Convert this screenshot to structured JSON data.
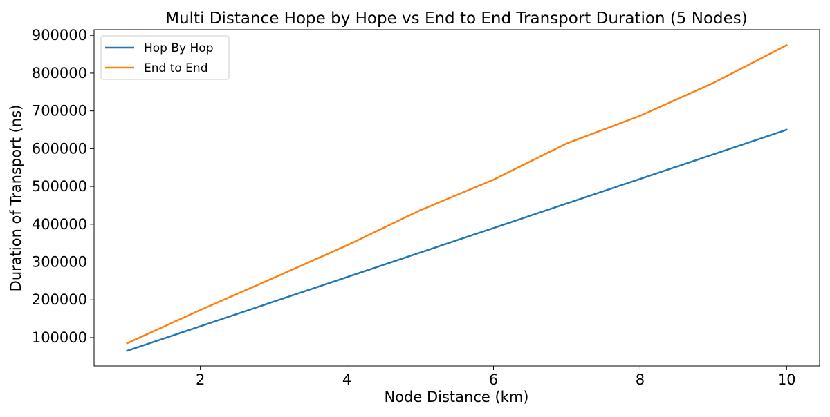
{
  "chart_data": {
    "type": "line",
    "title": "Multi Distance Hope by Hope vs End to End Transport Duration (5 Nodes)",
    "xlabel": "Node Distance (km)",
    "ylabel": "Duration of Transport (ns)",
    "x": [
      1,
      2,
      3,
      4,
      5,
      6,
      7,
      8,
      9,
      10
    ],
    "xlim": [
      0.55,
      10.45
    ],
    "ylim": [
      25000,
      915000
    ],
    "xticks": [
      2,
      4,
      6,
      8,
      10
    ],
    "yticks": [
      100000,
      200000,
      300000,
      400000,
      500000,
      600000,
      700000,
      800000,
      900000
    ],
    "grid": false,
    "legend_position": "upper-left",
    "series": [
      {
        "name": "Hop By Hop",
        "color": "#1f77b4",
        "values": [
          65000,
          130000,
          195000,
          260000,
          325000,
          390000,
          455000,
          520000,
          585000,
          650000
        ]
      },
      {
        "name": "End to End",
        "color": "#ff7f0e",
        "values": [
          85000,
          173000,
          258000,
          344000,
          437000,
          518000,
          614000,
          687000,
          774000,
          874000
        ]
      }
    ]
  }
}
